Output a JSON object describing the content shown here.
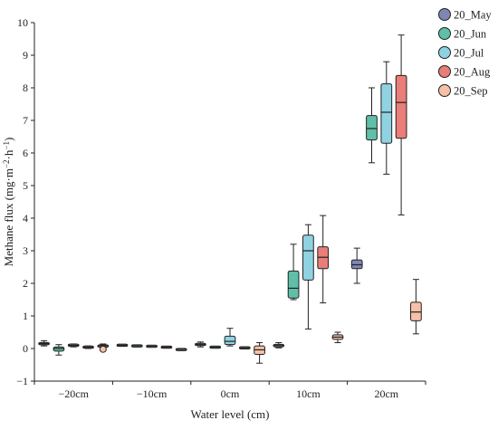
{
  "chart_data": {
    "type": "box",
    "title": "",
    "xlabel": "Water level (cm)",
    "ylabel": "Methane flux (mg·m",
    "ylabel_sup1": "−2",
    "ylabel_mid": "·h",
    "ylabel_sup2": "−1",
    "ylabel_end": ")",
    "ylim": [
      -1,
      10
    ],
    "yticks": [
      -1,
      0,
      1,
      2,
      3,
      4,
      5,
      6,
      7,
      8,
      9,
      10
    ],
    "categories": [
      "-20cm",
      "-10cm",
      "0cm",
      "10cm",
      "20cm"
    ],
    "grid": false,
    "legend_position": "top-right",
    "series": [
      {
        "name": "20_May",
        "color": "#7e87b4",
        "boxes": [
          {
            "category": "-20cm",
            "whislo": 0.08,
            "q1": 0.12,
            "med": 0.15,
            "q3": 0.18,
            "whishi": 0.24
          },
          {
            "category": "-10cm",
            "whislo": 0.07,
            "q1": 0.09,
            "med": 0.1,
            "q3": 0.11,
            "whishi": 0.12
          },
          {
            "category": "0cm",
            "whislo": 0.05,
            "q1": 0.09,
            "med": 0.12,
            "q3": 0.16,
            "whishi": 0.2
          },
          {
            "category": "10cm",
            "whislo": 0.02,
            "q1": 0.05,
            "med": 0.09,
            "q3": 0.13,
            "whishi": 0.18
          },
          {
            "category": "20cm",
            "whislo": 2.0,
            "q1": 2.45,
            "med": 2.57,
            "q3": 2.72,
            "whishi": 3.08
          }
        ]
      },
      {
        "name": "20_Jun",
        "color": "#5fbfa8",
        "boxes": [
          {
            "category": "-20cm",
            "whislo": -0.2,
            "q1": -0.08,
            "med": 0.0,
            "q3": 0.05,
            "whishi": 0.12
          },
          {
            "category": "-10cm",
            "whislo": 0.06,
            "q1": 0.07,
            "med": 0.08,
            "q3": 0.09,
            "whishi": 0.1
          },
          {
            "category": "0cm",
            "whislo": 0.02,
            "q1": 0.03,
            "med": 0.04,
            "q3": 0.05,
            "whishi": 0.06
          },
          {
            "category": "10cm",
            "whislo": 1.5,
            "q1": 1.55,
            "med": 1.85,
            "q3": 2.38,
            "whishi": 3.2
          },
          {
            "category": "20cm",
            "whislo": 5.7,
            "q1": 6.4,
            "med": 6.75,
            "q3": 7.15,
            "whishi": 8.0
          }
        ]
      },
      {
        "name": "20_Jul",
        "color": "#8fd3e2",
        "boxes": [
          {
            "category": "-20cm",
            "whislo": 0.05,
            "q1": 0.08,
            "med": 0.1,
            "q3": 0.12,
            "whishi": 0.14
          },
          {
            "category": "-10cm",
            "whislo": 0.05,
            "q1": 0.06,
            "med": 0.07,
            "q3": 0.08,
            "whishi": 0.09
          },
          {
            "category": "0cm",
            "whislo": 0.08,
            "q1": 0.12,
            "med": 0.22,
            "q3": 0.38,
            "whishi": 0.62
          },
          {
            "category": "10cm",
            "whislo": 0.6,
            "q1": 2.1,
            "med": 3.0,
            "q3": 3.48,
            "whishi": 3.8
          },
          {
            "category": "20cm",
            "whislo": 5.35,
            "q1": 6.3,
            "med": 7.25,
            "q3": 8.12,
            "whishi": 8.8
          }
        ]
      },
      {
        "name": "20_Aug",
        "color": "#e97d78",
        "boxes": [
          {
            "category": "-20cm",
            "whislo": 0.0,
            "q1": 0.02,
            "med": 0.04,
            "q3": 0.06,
            "whishi": 0.08
          },
          {
            "category": "-10cm",
            "whislo": 0.02,
            "q1": 0.03,
            "med": 0.04,
            "q3": 0.05,
            "whishi": 0.06
          },
          {
            "category": "0cm",
            "whislo": 0.0,
            "q1": 0.01,
            "med": 0.02,
            "q3": 0.03,
            "whishi": 0.04
          },
          {
            "category": "10cm",
            "whislo": 1.4,
            "q1": 2.45,
            "med": 2.8,
            "q3": 3.12,
            "whishi": 4.08
          },
          {
            "category": "20cm",
            "whislo": 4.1,
            "q1": 6.45,
            "med": 7.55,
            "q3": 8.38,
            "whishi": 9.62
          }
        ]
      },
      {
        "name": "20_Sep",
        "color": "#f6c1a6",
        "boxes": [
          {
            "category": "-20cm",
            "whislo": -0.06,
            "q1": 0.04,
            "med": 0.08,
            "q3": 0.11,
            "whishi": 0.14,
            "outliers": [
              -0.02
            ]
          },
          {
            "category": "-10cm",
            "whislo": -0.06,
            "q1": -0.04,
            "med": -0.03,
            "q3": -0.02,
            "whishi": 0.0
          },
          {
            "category": "0cm",
            "whislo": -0.45,
            "q1": -0.18,
            "med": -0.04,
            "q3": 0.08,
            "whishi": 0.18
          },
          {
            "category": "10cm",
            "whislo": 0.18,
            "q1": 0.28,
            "med": 0.35,
            "q3": 0.42,
            "whishi": 0.5
          },
          {
            "category": "20cm",
            "whislo": 0.45,
            "q1": 0.85,
            "med": 1.12,
            "q3": 1.42,
            "whishi": 2.12
          }
        ]
      }
    ]
  }
}
